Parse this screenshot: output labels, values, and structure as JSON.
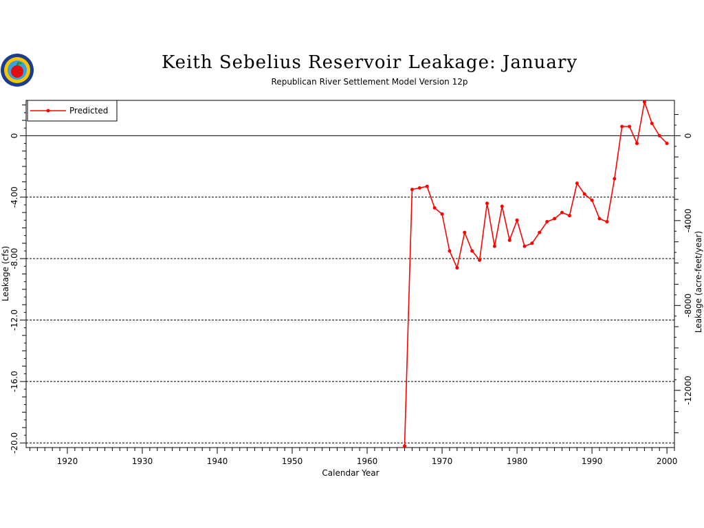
{
  "chart_data": {
    "type": "line",
    "title": "Keith Sebelius Reservoir Leakage: January",
    "subtitle": "Republican River Settlement Model Version 12p",
    "xlabel": "Calendar Year",
    "ylabel": "Leakage (cfs)",
    "ylabel_right": "Leakage (acre-feet/year)",
    "xlim": [
      1914.5,
      2001
    ],
    "ylim": [
      -20.3,
      2.3
    ],
    "x_ticks": [
      1920,
      1930,
      1940,
      1950,
      1960,
      1970,
      1980,
      1990,
      2000
    ],
    "x_tick_labels": [
      "1920",
      "1930",
      "1940",
      "1950",
      "1960",
      "1970",
      "1980",
      "1990",
      "2000"
    ],
    "y_ticks": [
      0,
      -4,
      -8,
      -12,
      -16,
      -20
    ],
    "y_tick_labels": [
      "0",
      "-4.00",
      "-8.00",
      "-12.0",
      "-16.0",
      "-20.0"
    ],
    "y2_ticks": [
      0,
      -4000,
      -8000,
      -12000
    ],
    "y2_tick_labels": [
      "0",
      "-4000",
      "-8000",
      "-12000"
    ],
    "y2_per_y": 723.97,
    "grid": "horizontal-dashed",
    "zero_line": true,
    "legend_position": "top-left",
    "series": [
      {
        "name": "Predicted",
        "color": "#ff0000",
        "x": [
          1965,
          1966,
          1967,
          1968,
          1969,
          1970,
          1971,
          1972,
          1973,
          1974,
          1975,
          1976,
          1977,
          1978,
          1979,
          1980,
          1981,
          1982,
          1983,
          1984,
          1985,
          1986,
          1987,
          1988,
          1989,
          1990,
          1991,
          1992,
          1993,
          1994,
          1995,
          1996,
          1997,
          1998,
          1999,
          2000
        ],
        "y": [
          -20.2,
          -3.5,
          -3.4,
          -3.3,
          -4.7,
          -5.1,
          -7.5,
          -8.6,
          -6.3,
          -7.5,
          -8.1,
          -4.4,
          -7.2,
          -4.6,
          -6.8,
          -5.5,
          -7.2,
          -7.0,
          -6.3,
          -5.6,
          -5.4,
          -5.0,
          -5.2,
          -3.1,
          -3.8,
          -4.2,
          -5.4,
          -5.6,
          -2.8,
          0.6,
          0.6,
          -0.5,
          2.2,
          0.8,
          0.0,
          -0.5
        ]
      }
    ]
  }
}
